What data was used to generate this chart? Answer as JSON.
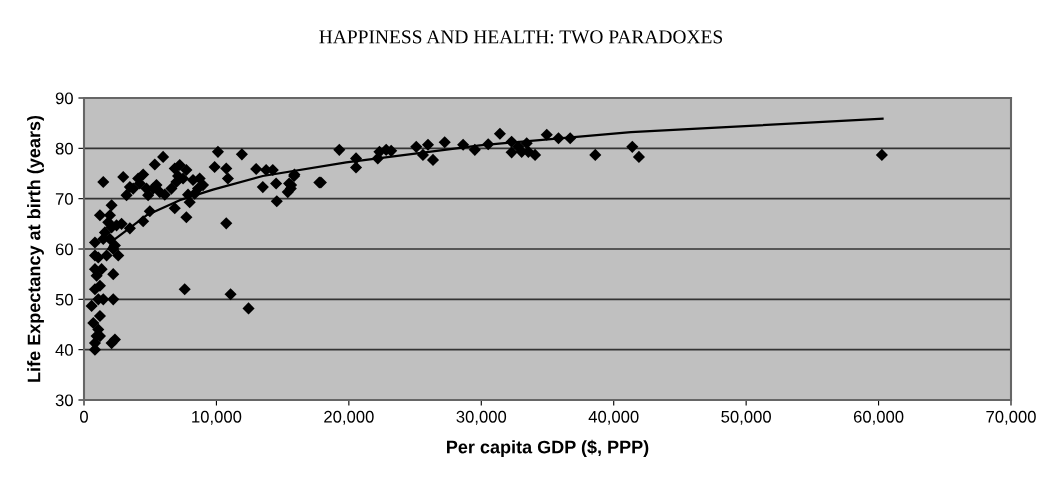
{
  "chart_data": {
    "type": "scatter",
    "title": "HAPPINESS AND HEALTH: TWO PARADOXES",
    "xlabel": "Per capita GDP ($, PPP)",
    "ylabel": "Life Expectancy at birth (years)",
    "xlim": [
      0,
      70000
    ],
    "ylim": [
      30,
      90
    ],
    "xticks": [
      0,
      {
        "value": 10000,
        "label": "10,000"
      },
      {
        "value": 20000,
        "label": "20,000"
      },
      {
        "value": 30000,
        "label": "30,000"
      },
      {
        "value": 40000,
        "label": "40,000"
      },
      {
        "value": 50000,
        "label": "50,000"
      },
      {
        "value": 60000,
        "label": "60,000"
      },
      {
        "value": 70000,
        "label": "70,000"
      }
    ],
    "yticks": [
      30,
      40,
      50,
      60,
      70,
      80,
      90
    ],
    "grid": "y",
    "marker": "diamond",
    "series": [
      {
        "color": "#000000",
        "x": [
          1456,
          2962,
          5974,
          5346,
          10115,
          9864,
          10743,
          10868,
          11923,
          13002,
          13754,
          14256,
          13503,
          14507,
          14558,
          15638,
          15889,
          15386,
          17771,
          10743,
          7605,
          11069,
          12425,
          7731,
          6852,
          4970,
          4468,
          3464,
          3213,
          3715,
          4217,
          4719,
          5221,
          5723,
          3464,
          4092,
          4468,
          5472,
          4844,
          6100,
          6852,
          7229,
          6977,
          7480,
          6601,
          7731,
          7103,
          8233,
          8609,
          8986,
          8358,
          7982,
          7856,
          8735,
          828,
          954,
          703,
          1079,
          1205,
          577,
          1079,
          1456,
          828,
          1205,
          954,
          828,
          2209,
          1330,
          1079,
          2209,
          828,
          1707,
          2586,
          828,
          1456,
          1958,
          2335,
          1581,
          2084,
          2460,
          2837,
          1205,
          1958,
          2084,
          1832,
          2209,
          2084,
          2335,
          1205,
          828,
          15615,
          15868,
          15489,
          17889,
          19279,
          20542,
          20542,
          22185,
          22311,
          23196,
          22817,
          25090,
          25596,
          25975,
          26354,
          27238,
          28628,
          29512,
          30523,
          31407,
          32292,
          32292,
          32797,
          33429,
          33556,
          34061,
          33050,
          34945,
          35829,
          36713,
          38608,
          41404,
          41905,
          60250
        ],
        "values": [
          73.3,
          74.3,
          78.3,
          76.8,
          79.3,
          76.3,
          76.0,
          74.0,
          78.8,
          75.9,
          75.7,
          75.7,
          72.3,
          73.0,
          69.5,
          72.7,
          74.8,
          71.3,
          73.2,
          65.1,
          52.0,
          51.0,
          48.2,
          66.3,
          68.1,
          67.5,
          65.5,
          64.1,
          70.7,
          72.0,
          73.0,
          72.0,
          72.0,
          71.3,
          72.3,
          74.0,
          74.8,
          72.7,
          70.7,
          70.8,
          76.0,
          76.7,
          73.3,
          74.0,
          72.0,
          75.7,
          74.5,
          73.7,
          72.0,
          72.7,
          71.0,
          69.3,
          70.8,
          74.0,
          41.3,
          42.7,
          45.3,
          44.0,
          46.7,
          48.7,
          50.0,
          50.0,
          52.0,
          52.7,
          54.7,
          56.0,
          55.0,
          56.0,
          58.3,
          60.0,
          58.7,
          58.7,
          58.7,
          61.3,
          62.0,
          62.0,
          60.7,
          63.3,
          64.3,
          64.7,
          65.0,
          66.7,
          66.7,
          68.7,
          65.3,
          50.0,
          41.3,
          42.0,
          42.7,
          40.0,
          72.0,
          74.5,
          73.0,
          73.2,
          79.7,
          78.0,
          76.2,
          78.0,
          79.3,
          79.5,
          79.7,
          80.3,
          78.7,
          80.7,
          77.7,
          81.2,
          80.7,
          79.7,
          80.8,
          82.9,
          81.3,
          79.2,
          80.3,
          81.0,
          79.3,
          78.7,
          79.3,
          82.7,
          82.0,
          82.0,
          78.7,
          80.3,
          78.3,
          78.7
        ]
      },
      {
        "type": "line",
        "color": "#000000",
        "marker": "none",
        "x": [
          1832,
          2209,
          4719,
          7229,
          9739,
          13503,
          19806,
          29900,
          41300,
          60300
        ],
        "values": [
          60.0,
          61.7,
          66.7,
          69.7,
          71.8,
          74.5,
          77.2,
          80.6,
          83.2,
          85.9
        ]
      }
    ]
  }
}
